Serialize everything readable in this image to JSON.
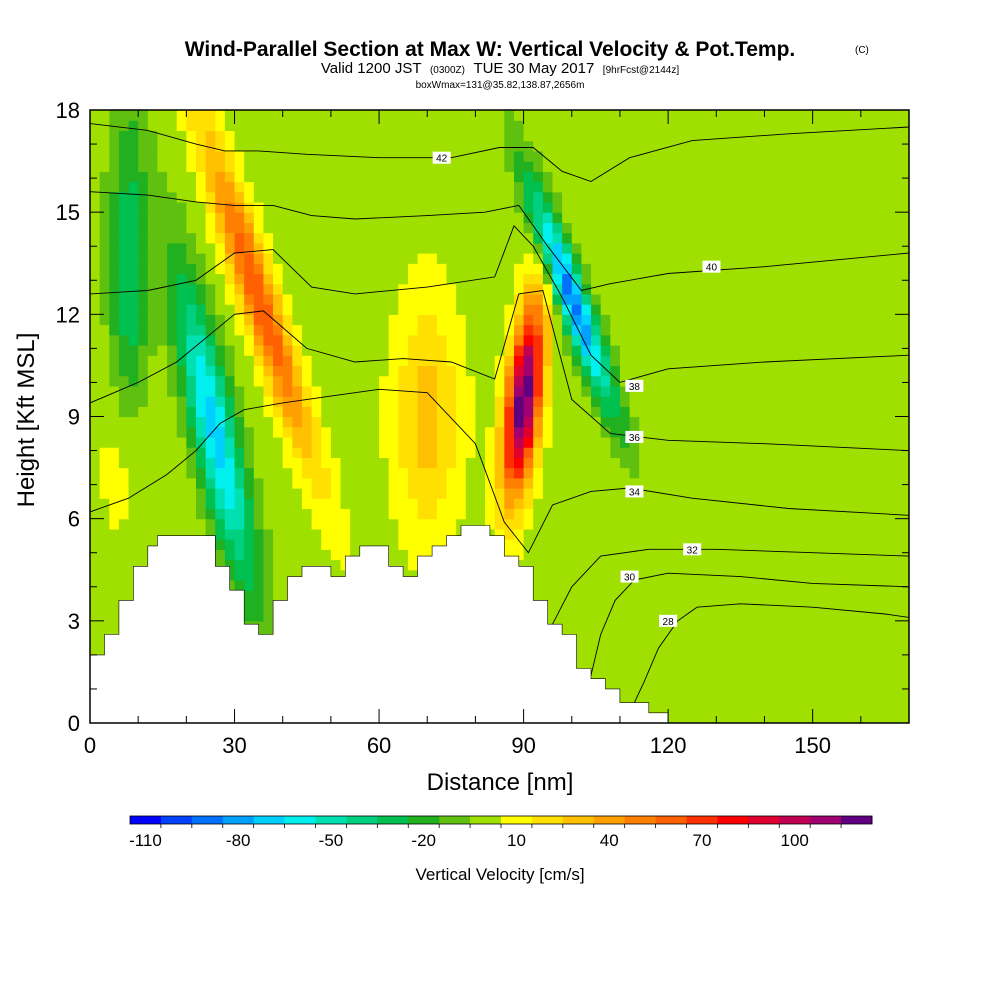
{
  "chart_data": {
    "type": "heatmap",
    "title": "Wind-Parallel Section at Max W: Vertical Velocity & Pot.Temp.",
    "title_mark": "(C)",
    "subtitle_prefix": "Valid 1200 JST",
    "subtitle_utc": "(0300Z)",
    "subtitle_date": "TUE 30 May 2017",
    "subtitle_fcst": "[9hrFcst@2144z]",
    "subtitle2": "boxWmax=131@35.82,138.87,2656m",
    "xlabel": "Distance [nm]",
    "ylabel": "Height [Kft MSL]",
    "xlim": [
      0,
      170
    ],
    "ylim": [
      0,
      18
    ],
    "x_ticks": [
      "0",
      "30",
      "60",
      "90",
      "120",
      "150"
    ],
    "x_tick_values": [
      0,
      30,
      60,
      90,
      120,
      150
    ],
    "y_ticks": [
      "0",
      "3",
      "6",
      "9",
      "12",
      "15",
      "18"
    ],
    "y_tick_values": [
      0,
      3,
      6,
      9,
      12,
      15,
      18
    ],
    "colorbar": {
      "title": "Vertical Velocity [cm/s]",
      "tick_labels": [
        "-110",
        "-80",
        "-50",
        "-20",
        "10",
        "40",
        "70",
        "100"
      ],
      "tick_values": [
        -110,
        -80,
        -50,
        -20,
        10,
        40,
        70,
        100
      ],
      "range": [
        -115,
        125
      ],
      "step": 10,
      "colors": [
        "#0000ff",
        "#0040ff",
        "#0070ff",
        "#00a0ff",
        "#00d0ff",
        "#00f0f0",
        "#00e0b0",
        "#00d080",
        "#00c050",
        "#20b020",
        "#60c010",
        "#a0e000",
        "#ffff00",
        "#ffe000",
        "#ffc000",
        "#ffa000",
        "#ff8000",
        "#ff6000",
        "#ff3000",
        "#ff0000",
        "#e00030",
        "#c00050",
        "#a00070",
        "#600080"
      ]
    },
    "background_value": 0,
    "features": [
      {
        "kind": "updraft",
        "x": 35,
        "y": 12.5,
        "sx": 4,
        "sy": 5,
        "amp": 65,
        "lean": -0.45
      },
      {
        "kind": "updraft",
        "x": 90,
        "y": 9.5,
        "sx": 3.5,
        "sy": 2.8,
        "amp": 125,
        "lean": 0.15
      },
      {
        "kind": "updraft",
        "x": 70,
        "y": 9,
        "sx": 7,
        "sy": 3.5,
        "amp": 30,
        "lean": 0
      },
      {
        "kind": "updraft",
        "x": 7,
        "y": 8,
        "sx": 5,
        "sy": 3,
        "amp": 15,
        "lean": 0
      },
      {
        "kind": "downdraft",
        "x": 26,
        "y": 8.5,
        "sx": 4.5,
        "sy": 4.5,
        "amp": -70,
        "lean": -0.3
      },
      {
        "kind": "downdraft",
        "x": 100,
        "y": 12.5,
        "sx": 3.2,
        "sy": 3.2,
        "amp": -90,
        "lean": -0.5
      },
      {
        "kind": "downdraft",
        "x": 8,
        "y": 13,
        "sx": 4,
        "sy": 5,
        "amp": -35,
        "lean": 0
      }
    ],
    "terrain": [
      [
        0,
        2
      ],
      [
        3,
        2
      ],
      [
        3,
        2.6
      ],
      [
        6,
        2.6
      ],
      [
        6,
        3.6
      ],
      [
        9,
        3.6
      ],
      [
        9,
        4.6
      ],
      [
        12,
        4.6
      ],
      [
        12,
        5.2
      ],
      [
        14,
        5.2
      ],
      [
        14,
        5.5
      ],
      [
        26,
        5.5
      ],
      [
        26,
        4.6
      ],
      [
        29,
        4.6
      ],
      [
        29,
        3.9
      ],
      [
        32,
        3.9
      ],
      [
        32,
        2.9
      ],
      [
        35,
        2.9
      ],
      [
        35,
        2.6
      ],
      [
        38,
        2.6
      ],
      [
        38,
        3.6
      ],
      [
        41,
        3.6
      ],
      [
        41,
        4.3
      ],
      [
        44,
        4.3
      ],
      [
        44,
        4.6
      ],
      [
        50,
        4.6
      ],
      [
        50,
        4.3
      ],
      [
        53,
        4.3
      ],
      [
        53,
        4.9
      ],
      [
        56,
        4.9
      ],
      [
        56,
        5.2
      ],
      [
        62,
        5.2
      ],
      [
        62,
        4.6
      ],
      [
        65,
        4.6
      ],
      [
        65,
        4.3
      ],
      [
        68,
        4.3
      ],
      [
        68,
        4.9
      ],
      [
        71,
        4.9
      ],
      [
        71,
        5.2
      ],
      [
        74,
        5.2
      ],
      [
        74,
        5.5
      ],
      [
        77,
        5.5
      ],
      [
        77,
        5.8
      ],
      [
        83,
        5.8
      ],
      [
        83,
        5.5
      ],
      [
        86,
        5.5
      ],
      [
        86,
        4.9
      ],
      [
        89,
        4.9
      ],
      [
        89,
        4.6
      ],
      [
        92,
        4.6
      ],
      [
        92,
        3.6
      ],
      [
        95,
        3.6
      ],
      [
        95,
        2.9
      ],
      [
        98,
        2.9
      ],
      [
        98,
        2.6
      ],
      [
        101,
        2.6
      ],
      [
        101,
        1.6
      ],
      [
        104,
        1.6
      ],
      [
        104,
        1.3
      ],
      [
        107,
        1.3
      ],
      [
        107,
        1
      ],
      [
        110,
        1
      ],
      [
        110,
        0.6
      ],
      [
        116,
        0.6
      ],
      [
        116,
        0.3
      ],
      [
        120,
        0.3
      ],
      [
        120,
        0
      ],
      [
        170,
        0
      ]
    ],
    "theta_contours": [
      {
        "label": "28",
        "label_at": [
          120,
          3
        ],
        "points": [
          [
            112,
            0.3
          ],
          [
            115,
            1.2
          ],
          [
            118,
            2.2
          ],
          [
            122,
            3
          ],
          [
            126,
            3.4
          ],
          [
            135,
            3.5
          ],
          [
            150,
            3.4
          ],
          [
            165,
            3.2
          ],
          [
            170,
            3.1
          ]
        ]
      },
      {
        "label": "30",
        "label_at": [
          112,
          4.3
        ],
        "points": [
          [
            104,
            1.4
          ],
          [
            106,
            2.6
          ],
          [
            109,
            3.6
          ],
          [
            113,
            4.2
          ],
          [
            120,
            4.4
          ],
          [
            135,
            4.3
          ],
          [
            150,
            4.1
          ],
          [
            170,
            4.0
          ]
        ]
      },
      {
        "label": "32",
        "label_at": [
          125,
          5.1
        ],
        "points": [
          [
            96,
            2.9
          ],
          [
            100,
            4
          ],
          [
            106,
            4.9
          ],
          [
            116,
            5.1
          ],
          [
            130,
            5.1
          ],
          [
            150,
            5.0
          ],
          [
            170,
            4.9
          ]
        ]
      },
      {
        "label": "34",
        "label_at": [
          113,
          6.8
        ],
        "points": [
          [
            0,
            6.2
          ],
          [
            8,
            6.6
          ],
          [
            16,
            7.3
          ],
          [
            22,
            8.0
          ],
          [
            27,
            8.8
          ],
          [
            32,
            9.2
          ],
          [
            40,
            9.4
          ],
          [
            50,
            9.6
          ],
          [
            60,
            9.8
          ],
          [
            70,
            9.7
          ],
          [
            80,
            8.2
          ],
          [
            86,
            5.9
          ],
          [
            91,
            5.0
          ],
          [
            96,
            6.4
          ],
          [
            104,
            6.8
          ],
          [
            112,
            6.9
          ],
          [
            125,
            6.6
          ],
          [
            145,
            6.3
          ],
          [
            170,
            6.1
          ]
        ]
      },
      {
        "label": "36",
        "label_at": [
          113,
          8.4
        ],
        "points": [
          [
            0,
            9.4
          ],
          [
            10,
            10.0
          ],
          [
            18,
            10.6
          ],
          [
            24,
            11.3
          ],
          [
            30,
            12.0
          ],
          [
            36,
            12.1
          ],
          [
            45,
            11.0
          ],
          [
            55,
            10.6
          ],
          [
            65,
            10.7
          ],
          [
            75,
            10.6
          ],
          [
            84,
            10.1
          ],
          [
            89,
            12.6
          ],
          [
            94,
            12.7
          ],
          [
            100,
            9.5
          ],
          [
            108,
            8.5
          ],
          [
            120,
            8.3
          ],
          [
            140,
            8.2
          ],
          [
            170,
            8.0
          ]
        ]
      },
      {
        "label": "38",
        "label_at": [
          113,
          9.9
        ],
        "points": [
          [
            0,
            12.6
          ],
          [
            12,
            12.7
          ],
          [
            22,
            13.0
          ],
          [
            30,
            13.8
          ],
          [
            38,
            13.9
          ],
          [
            46,
            12.8
          ],
          [
            55,
            12.6
          ],
          [
            70,
            12.8
          ],
          [
            84,
            13.1
          ],
          [
            88,
            14.6
          ],
          [
            92,
            14.0
          ],
          [
            98,
            12.5
          ],
          [
            104,
            10.8
          ],
          [
            110,
            10.0
          ],
          [
            120,
            10.4
          ],
          [
            140,
            10.6
          ],
          [
            170,
            10.8
          ]
        ]
      },
      {
        "label": "40",
        "label_at": [
          129,
          13.4
        ],
        "points": [
          [
            0,
            15.6
          ],
          [
            12,
            15.5
          ],
          [
            22,
            15.3
          ],
          [
            30,
            15.2
          ],
          [
            38,
            15.2
          ],
          [
            46,
            14.9
          ],
          [
            55,
            14.8
          ],
          [
            70,
            14.9
          ],
          [
            82,
            15.0
          ],
          [
            89,
            15.2
          ],
          [
            95,
            14.0
          ],
          [
            102,
            12.7
          ],
          [
            108,
            12.9
          ],
          [
            120,
            13.2
          ],
          [
            140,
            13.4
          ],
          [
            170,
            13.8
          ]
        ]
      },
      {
        "label": "42",
        "label_at": [
          73,
          16.6
        ],
        "points": [
          [
            0,
            17.6
          ],
          [
            12,
            17.4
          ],
          [
            22,
            17.0
          ],
          [
            28,
            16.8
          ],
          [
            35,
            16.8
          ],
          [
            45,
            16.7
          ],
          [
            60,
            16.6
          ],
          [
            75,
            16.6
          ],
          [
            85,
            16.9
          ],
          [
            92,
            16.9
          ],
          [
            98,
            16.2
          ],
          [
            104,
            15.9
          ],
          [
            112,
            16.6
          ],
          [
            125,
            17.1
          ],
          [
            145,
            17.3
          ],
          [
            170,
            17.5
          ]
        ]
      }
    ]
  }
}
